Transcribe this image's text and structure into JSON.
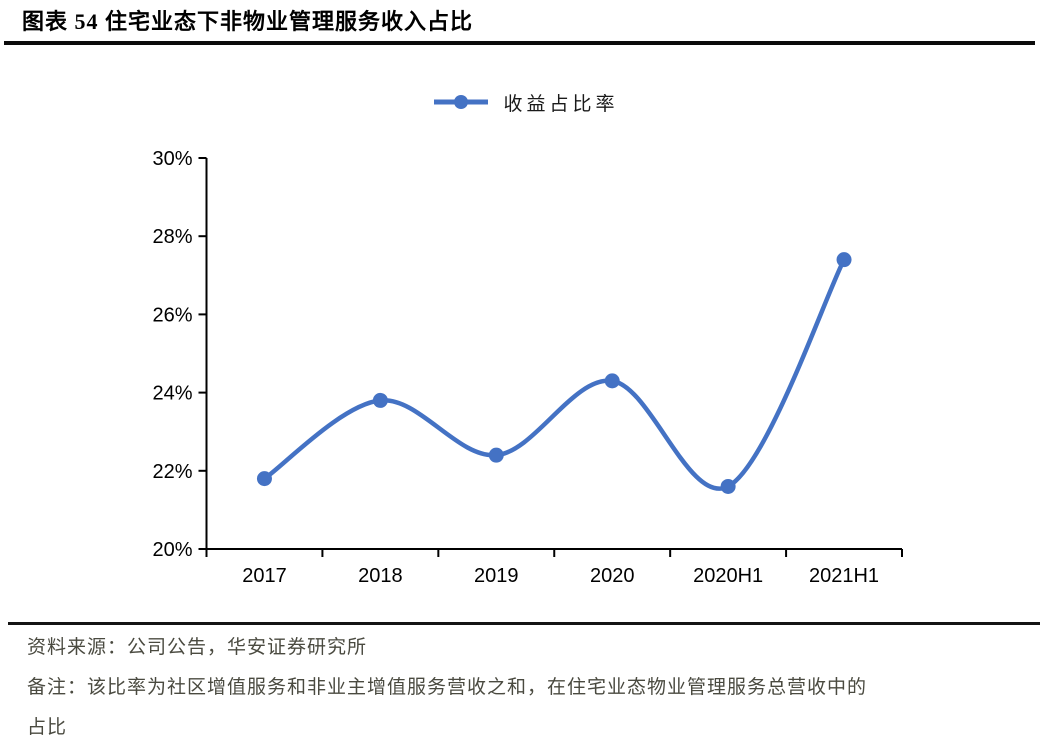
{
  "figure": {
    "title": "图表 54 住宅业态下非物业管理服务收入占比"
  },
  "chart_data": {
    "type": "line",
    "smoothed": true,
    "series_name": "收益占比率",
    "categories": [
      "2017",
      "2018",
      "2019",
      "2020",
      "2020H1",
      "2021H1"
    ],
    "values": [
      21.8,
      23.8,
      22.4,
      24.3,
      21.6,
      27.4
    ],
    "unit": "%",
    "ylim": [
      20,
      30
    ],
    "ytick_step": 2,
    "ytick_labels": [
      "20%",
      "22%",
      "24%",
      "26%",
      "28%",
      "30%"
    ],
    "grid": false,
    "legend_position": "top-center",
    "line_color": "#4472C4",
    "marker": "circle",
    "axis_color": "#000000"
  },
  "footer": {
    "source": "资料来源：公司公告，华安证券研究所",
    "note_lines": [
      "备注：该比率为社区增值服务和非业主增值服务营收之和，在住宅业态物业管理服务总营收中的",
      "占比"
    ]
  }
}
